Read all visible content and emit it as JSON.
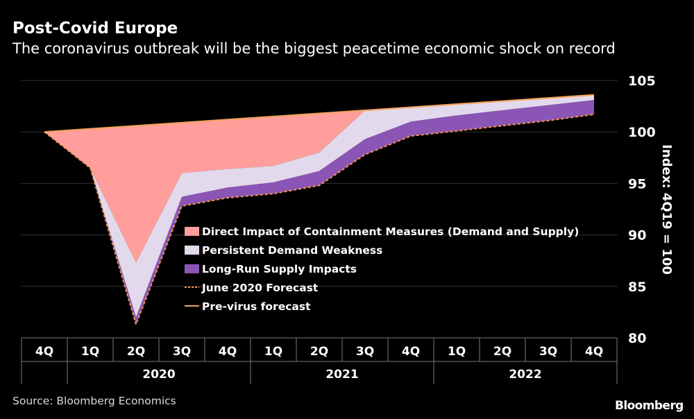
{
  "title": "Post-Covid Europe",
  "subtitle": "The coronavirus outbreak will be the biggest peacetime economic shock on record",
  "source": "Source: Bloomberg Economics",
  "logo": "Bloomberg",
  "chart_data": {
    "type": "area",
    "ylabel": "Index: 4Q19 = 100",
    "ylim": [
      80,
      105
    ],
    "yticks": [
      80,
      85,
      90,
      95,
      100,
      105
    ],
    "grid": true,
    "legend_position": "center",
    "x": [
      "4Q",
      "1Q",
      "2Q",
      "3Q",
      "4Q",
      "1Q",
      "2Q",
      "3Q",
      "4Q",
      "1Q",
      "2Q",
      "3Q",
      "4Q"
    ],
    "year_groups": [
      {
        "label": "2020",
        "start": 1,
        "end": 4
      },
      {
        "label": "2021",
        "start": 5,
        "end": 8
      },
      {
        "label": "2022",
        "start": 9,
        "end": 12
      }
    ],
    "colors": {
      "containment": "#ff9e9a",
      "demand": "#e3d9ec",
      "supply": "#8b55b5",
      "june_forecast": "#f3954e",
      "previrus": "#f3a35e",
      "grid": "#333333",
      "axis_box": "#7a7a7a"
    },
    "series": [
      {
        "name": "Pre-virus forecast",
        "key": "previrus",
        "values": [
          100.0,
          100.3,
          100.6,
          100.9,
          101.2,
          101.5,
          101.8,
          102.1,
          102.4,
          102.7,
          103.0,
          103.3,
          103.6
        ]
      },
      {
        "name": "Direct Impact of Containment Measures (Demand and Supply)",
        "key": "containment_lower",
        "values": [
          100.0,
          96.5,
          87.3,
          96.0,
          96.4,
          96.7,
          98.0,
          102.1,
          102.4,
          102.7,
          103.0,
          103.3,
          103.6
        ]
      },
      {
        "name": "Persistent Demand Weakness",
        "key": "demand_lower",
        "values": [
          100.0,
          96.5,
          82.0,
          93.7,
          94.6,
          95.1,
          96.2,
          99.3,
          101.0,
          101.6,
          102.1,
          102.6,
          103.1
        ]
      },
      {
        "name": "Long-Run Supply Impacts",
        "key": "supply_lower",
        "values": [
          100.0,
          96.5,
          81.3,
          92.8,
          93.6,
          94.0,
          94.8,
          97.8,
          99.6,
          100.1,
          100.6,
          101.1,
          101.7
        ]
      },
      {
        "name": "June 2020 Forecast",
        "key": "june",
        "values": [
          100.0,
          96.5,
          81.3,
          92.8,
          93.6,
          94.0,
          94.8,
          97.8,
          99.6,
          100.1,
          100.6,
          101.1,
          101.7
        ]
      }
    ],
    "legend": [
      {
        "label": "Direct Impact of Containment Measures (Demand and Supply)",
        "kind": "box",
        "color_key": "containment"
      },
      {
        "label": "Persistent Demand Weakness",
        "kind": "box",
        "color_key": "demand"
      },
      {
        "label": "Long-Run Supply Impacts",
        "kind": "box",
        "color_key": "supply"
      },
      {
        "label": "June 2020 Forecast",
        "kind": "dash",
        "color_key": "june_forecast"
      },
      {
        "label": "Pre-virus forecast",
        "kind": "line",
        "color_key": "previrus"
      }
    ]
  }
}
